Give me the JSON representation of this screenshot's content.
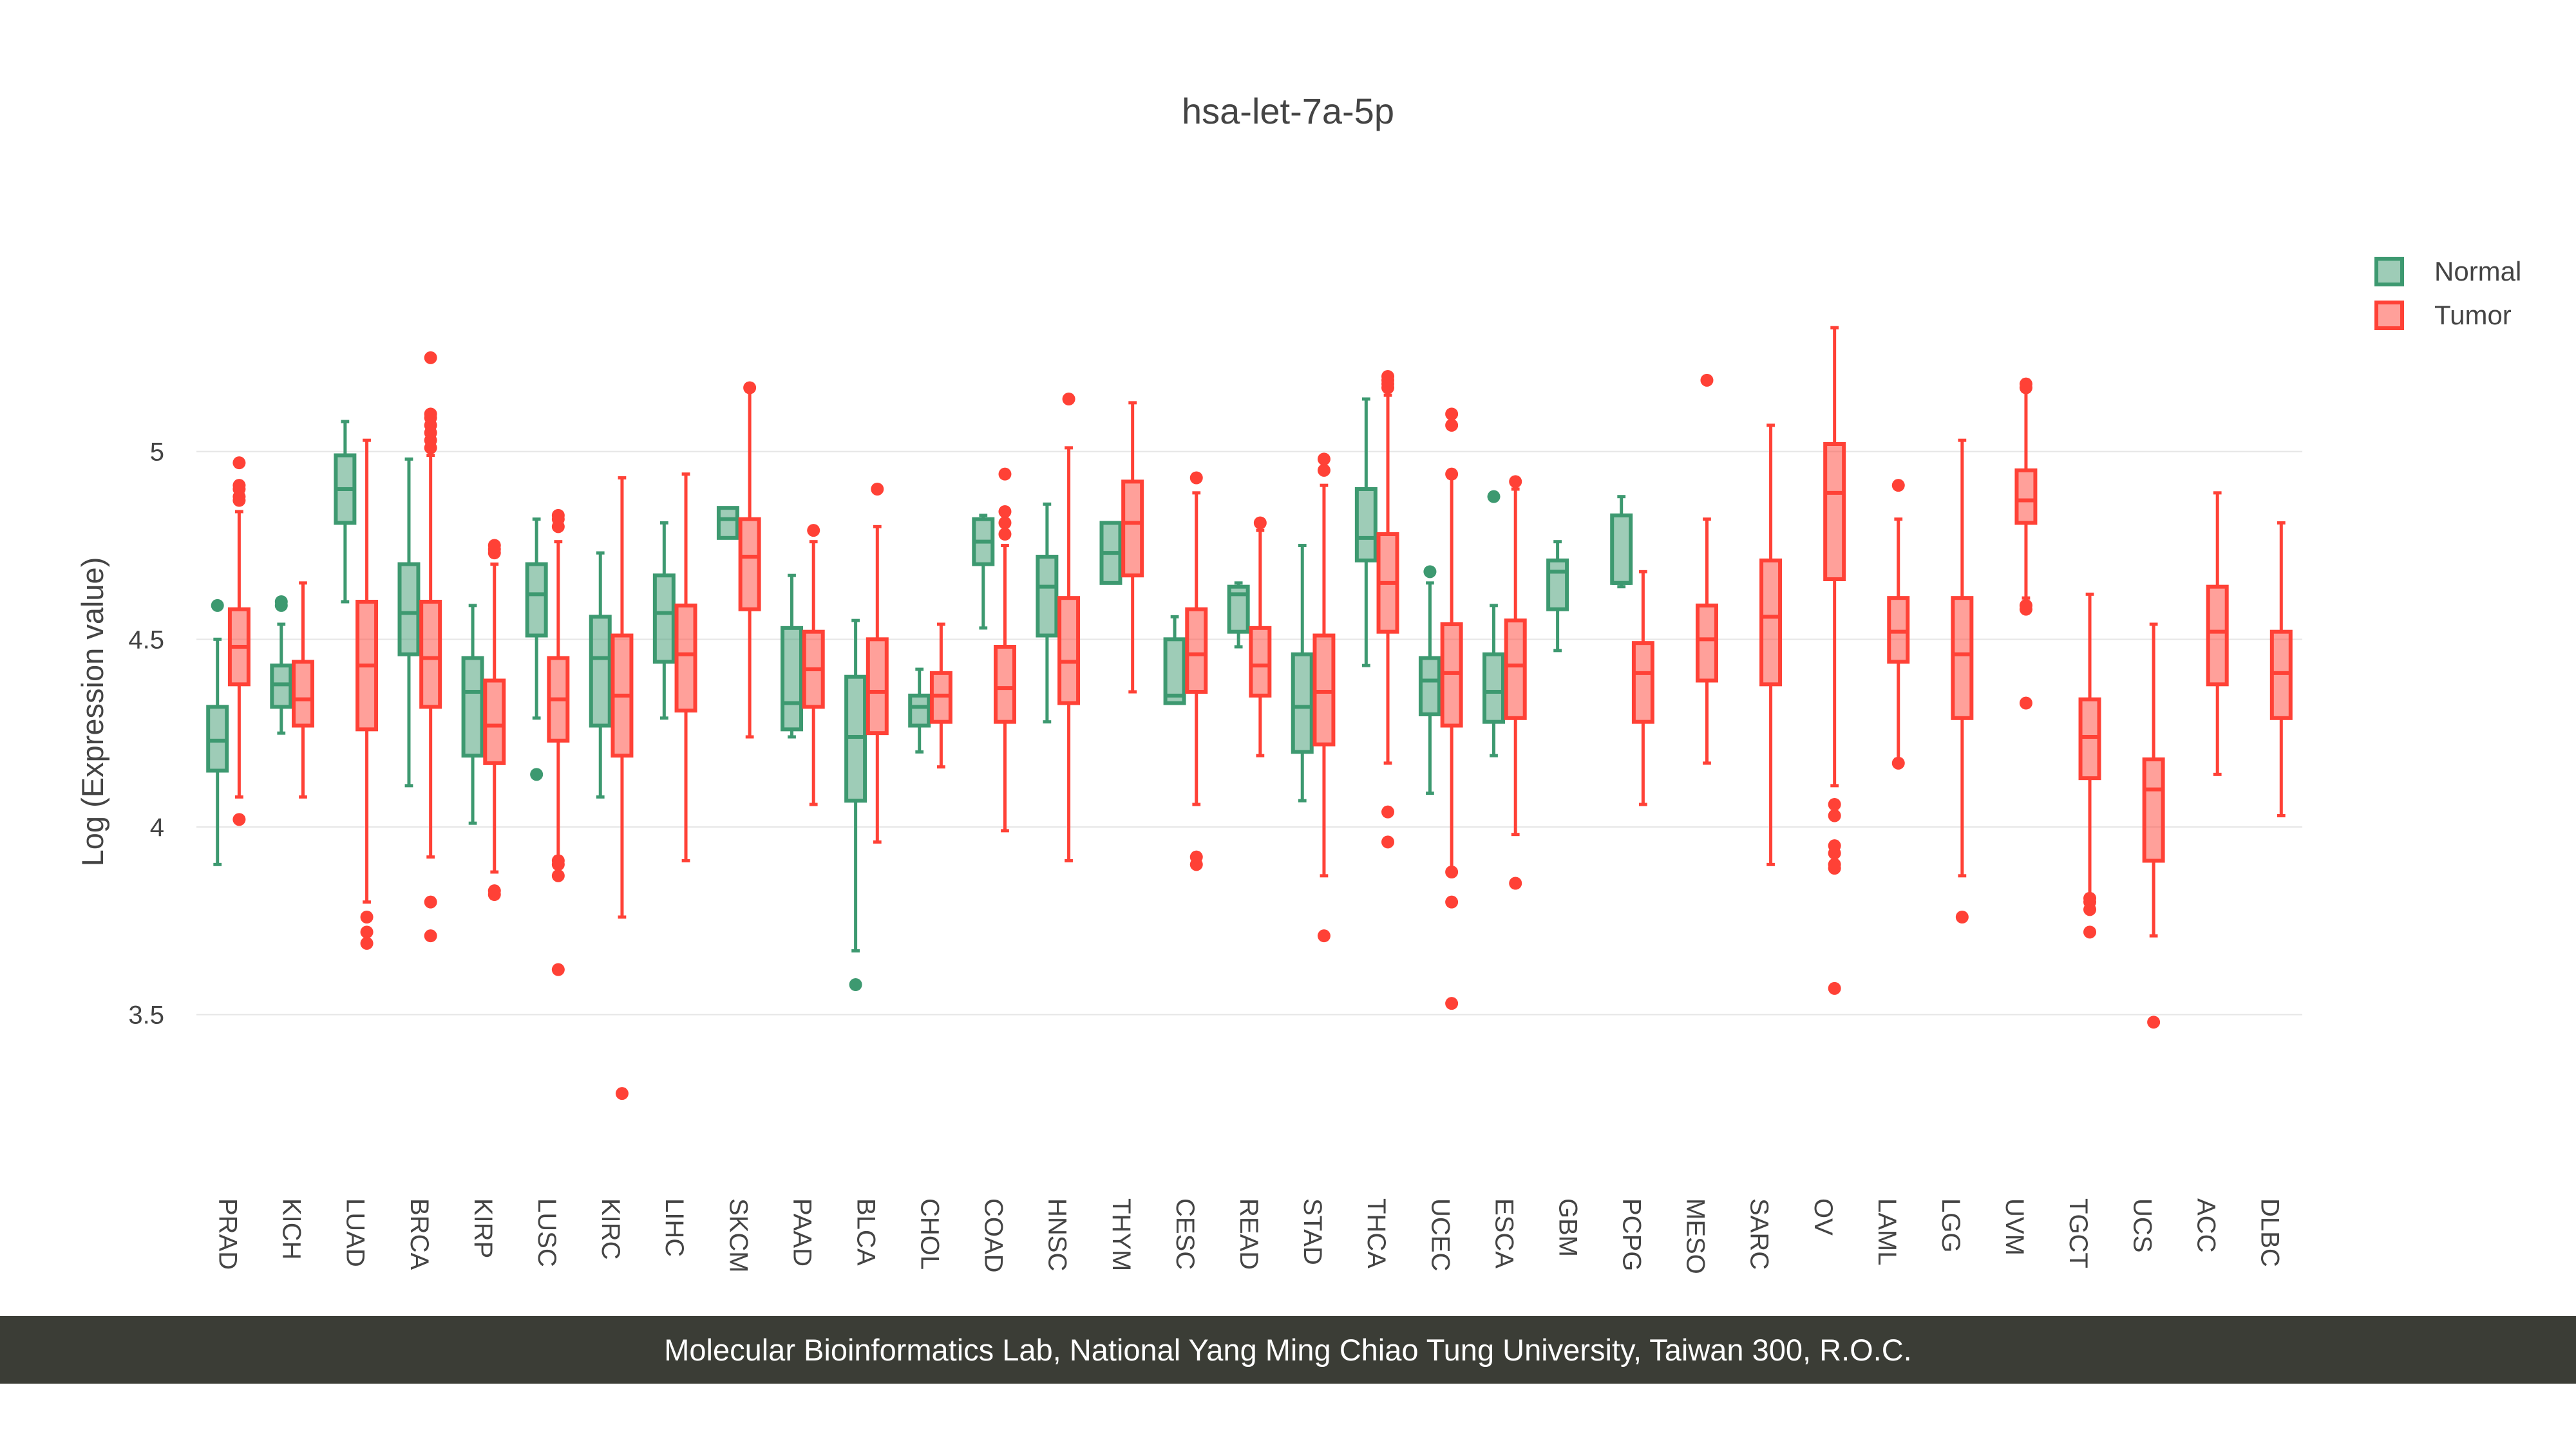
{
  "chart_data": {
    "type": "box",
    "title": "hsa-let-7a-5p",
    "xlabel": "",
    "ylabel": "Log (Expression value)",
    "ylim": [
      3.1,
      5.62
    ],
    "yticks": [
      3.5,
      4,
      4.5,
      5
    ],
    "yticklabels": [
      "3.5",
      "4",
      "4.5",
      "5"
    ],
    "grid": true,
    "legend_position": "top-right",
    "colors": {
      "Normal": "#3d9970",
      "Tumor": "#ff4136"
    },
    "series": [
      {
        "name": "Normal"
      },
      {
        "name": "Tumor"
      }
    ],
    "categories": [
      {
        "name": "PRAD",
        "normal": {
          "min": 3.9,
          "q1": 4.15,
          "median": 4.23,
          "q3": 4.32,
          "max": 4.5,
          "outliers": [
            4.59
          ]
        },
        "tumor": {
          "min": 4.08,
          "q1": 4.38,
          "median": 4.48,
          "q3": 4.58,
          "max": 4.84,
          "outliers": [
            4.02,
            4.87,
            4.88,
            4.9,
            4.91,
            4.97
          ]
        }
      },
      {
        "name": "KICH",
        "normal": {
          "min": 4.25,
          "q1": 4.32,
          "median": 4.38,
          "q3": 4.43,
          "max": 4.54,
          "outliers": [
            4.59,
            4.6
          ]
        },
        "tumor": {
          "min": 4.08,
          "q1": 4.27,
          "median": 4.34,
          "q3": 4.44,
          "max": 4.65,
          "outliers": []
        }
      },
      {
        "name": "LUAD",
        "normal": {
          "min": 4.6,
          "q1": 4.81,
          "median": 4.9,
          "q3": 4.99,
          "max": 5.08,
          "outliers": []
        },
        "tumor": {
          "min": 3.8,
          "q1": 4.26,
          "median": 4.43,
          "q3": 4.6,
          "max": 5.03,
          "outliers": [
            3.69,
            3.72,
            3.76
          ]
        }
      },
      {
        "name": "BRCA",
        "normal": {
          "min": 4.11,
          "q1": 4.46,
          "median": 4.57,
          "q3": 4.7,
          "max": 4.98,
          "outliers": []
        },
        "tumor": {
          "min": 3.92,
          "q1": 4.32,
          "median": 4.45,
          "q3": 4.6,
          "max": 4.99,
          "outliers": [
            3.71,
            3.8,
            5.01,
            5.03,
            5.05,
            5.07,
            5.09,
            5.1,
            5.25
          ]
        }
      },
      {
        "name": "KIRP",
        "normal": {
          "min": 4.01,
          "q1": 4.19,
          "median": 4.36,
          "q3": 4.45,
          "max": 4.59,
          "outliers": []
        },
        "tumor": {
          "min": 3.88,
          "q1": 4.17,
          "median": 4.27,
          "q3": 4.39,
          "max": 4.7,
          "outliers": [
            3.82,
            3.83,
            4.73,
            4.74,
            4.75
          ]
        }
      },
      {
        "name": "LUSC",
        "normal": {
          "min": 4.29,
          "q1": 4.51,
          "median": 4.62,
          "q3": 4.7,
          "max": 4.82,
          "outliers": [
            4.14
          ]
        },
        "tumor": {
          "min": 3.92,
          "q1": 4.23,
          "median": 4.34,
          "q3": 4.45,
          "max": 4.76,
          "outliers": [
            3.62,
            3.87,
            3.9,
            3.91,
            4.8,
            4.82,
            4.83
          ]
        }
      },
      {
        "name": "KIRC",
        "normal": {
          "min": 4.08,
          "q1": 4.27,
          "median": 4.45,
          "q3": 4.56,
          "max": 4.73,
          "outliers": []
        },
        "tumor": {
          "min": 3.76,
          "q1": 4.19,
          "median": 4.35,
          "q3": 4.51,
          "max": 4.93,
          "outliers": [
            3.29
          ]
        }
      },
      {
        "name": "LIHC",
        "normal": {
          "min": 4.29,
          "q1": 4.44,
          "median": 4.57,
          "q3": 4.67,
          "max": 4.81,
          "outliers": []
        },
        "tumor": {
          "min": 3.91,
          "q1": 4.31,
          "median": 4.46,
          "q3": 4.59,
          "max": 4.94,
          "outliers": []
        }
      },
      {
        "name": "SKCM",
        "normal": {
          "min": 4.77,
          "q1": 4.77,
          "median": 4.82,
          "q3": 4.85,
          "max": 4.85,
          "outliers": []
        },
        "tumor": {
          "min": 4.24,
          "q1": 4.58,
          "median": 4.72,
          "q3": 4.82,
          "max": 5.16,
          "outliers": [
            5.17
          ]
        }
      },
      {
        "name": "PAAD",
        "normal": {
          "min": 4.24,
          "q1": 4.26,
          "median": 4.33,
          "q3": 4.53,
          "max": 4.67,
          "outliers": []
        },
        "tumor": {
          "min": 4.06,
          "q1": 4.32,
          "median": 4.42,
          "q3": 4.52,
          "max": 4.76,
          "outliers": [
            4.79
          ]
        }
      },
      {
        "name": "BLCA",
        "normal": {
          "min": 3.67,
          "q1": 4.07,
          "median": 4.24,
          "q3": 4.4,
          "max": 4.55,
          "outliers": [
            3.58
          ]
        },
        "tumor": {
          "min": 3.96,
          "q1": 4.25,
          "median": 4.36,
          "q3": 4.5,
          "max": 4.8,
          "outliers": [
            4.9
          ]
        }
      },
      {
        "name": "CHOL",
        "normal": {
          "min": 4.2,
          "q1": 4.27,
          "median": 4.32,
          "q3": 4.35,
          "max": 4.42,
          "outliers": []
        },
        "tumor": {
          "min": 4.16,
          "q1": 4.28,
          "median": 4.35,
          "q3": 4.41,
          "max": 4.54,
          "outliers": []
        }
      },
      {
        "name": "COAD",
        "normal": {
          "min": 4.53,
          "q1": 4.7,
          "median": 4.76,
          "q3": 4.82,
          "max": 4.83,
          "outliers": []
        },
        "tumor": {
          "min": 3.99,
          "q1": 4.28,
          "median": 4.37,
          "q3": 4.48,
          "max": 4.75,
          "outliers": [
            4.78,
            4.81,
            4.84,
            4.94
          ]
        }
      },
      {
        "name": "HNSC",
        "normal": {
          "min": 4.28,
          "q1": 4.51,
          "median": 4.64,
          "q3": 4.72,
          "max": 4.86,
          "outliers": []
        },
        "tumor": {
          "min": 3.91,
          "q1": 4.33,
          "median": 4.44,
          "q3": 4.61,
          "max": 5.01,
          "outliers": [
            5.14
          ]
        }
      },
      {
        "name": "THYM",
        "normal": {
          "min": 4.65,
          "q1": 4.65,
          "median": 4.73,
          "q3": 4.81,
          "max": 4.81,
          "outliers": []
        },
        "tumor": {
          "min": 4.36,
          "q1": 4.67,
          "median": 4.81,
          "q3": 4.92,
          "max": 5.13,
          "outliers": []
        }
      },
      {
        "name": "CESC",
        "normal": {
          "min": 4.33,
          "q1": 4.33,
          "median": 4.35,
          "q3": 4.5,
          "max": 4.56,
          "outliers": []
        },
        "tumor": {
          "min": 4.06,
          "q1": 4.36,
          "median": 4.46,
          "q3": 4.58,
          "max": 4.89,
          "outliers": [
            3.9,
            3.92,
            4.93
          ]
        }
      },
      {
        "name": "READ",
        "normal": {
          "min": 4.48,
          "q1": 4.52,
          "median": 4.62,
          "q3": 4.64,
          "max": 4.65,
          "outliers": []
        },
        "tumor": {
          "min": 4.19,
          "q1": 4.35,
          "median": 4.43,
          "q3": 4.53,
          "max": 4.79,
          "outliers": [
            4.81
          ]
        }
      },
      {
        "name": "STAD",
        "normal": {
          "min": 4.07,
          "q1": 4.2,
          "median": 4.32,
          "q3": 4.46,
          "max": 4.75,
          "outliers": []
        },
        "tumor": {
          "min": 3.87,
          "q1": 4.22,
          "median": 4.36,
          "q3": 4.51,
          "max": 4.91,
          "outliers": [
            3.71,
            4.95,
            4.98
          ]
        }
      },
      {
        "name": "THCA",
        "normal": {
          "min": 4.43,
          "q1": 4.71,
          "median": 4.77,
          "q3": 4.9,
          "max": 5.14,
          "outliers": []
        },
        "tumor": {
          "min": 4.17,
          "q1": 4.52,
          "median": 4.65,
          "q3": 4.78,
          "max": 5.15,
          "outliers": [
            3.96,
            4.04,
            5.17,
            5.18,
            5.19,
            5.2
          ]
        }
      },
      {
        "name": "UCEC",
        "normal": {
          "min": 4.09,
          "q1": 4.3,
          "median": 4.39,
          "q3": 4.45,
          "max": 4.65,
          "outliers": [
            4.68
          ]
        },
        "tumor": {
          "min": 3.88,
          "q1": 4.27,
          "median": 4.41,
          "q3": 4.54,
          "max": 4.93,
          "outliers": [
            3.53,
            3.8,
            3.88,
            4.94,
            5.07,
            5.1
          ]
        }
      },
      {
        "name": "ESCA",
        "normal": {
          "min": 4.19,
          "q1": 4.28,
          "median": 4.36,
          "q3": 4.46,
          "max": 4.59,
          "outliers": [
            4.88
          ]
        },
        "tumor": {
          "min": 3.98,
          "q1": 4.29,
          "median": 4.43,
          "q3": 4.55,
          "max": 4.9,
          "outliers": [
            3.85,
            4.92
          ]
        }
      },
      {
        "name": "GBM",
        "normal": {
          "min": 4.47,
          "q1": 4.58,
          "median": 4.68,
          "q3": 4.71,
          "max": 4.76,
          "outliers": []
        },
        "tumor": null
      },
      {
        "name": "PCPG",
        "normal": {
          "min": 4.64,
          "q1": 4.65,
          "median": 4.65,
          "q3": 4.83,
          "max": 4.88,
          "outliers": []
        },
        "tumor": {
          "min": 4.06,
          "q1": 4.28,
          "median": 4.41,
          "q3": 4.49,
          "max": 4.68,
          "outliers": []
        }
      },
      {
        "name": "MESO",
        "normal": null,
        "tumor": {
          "min": 4.17,
          "q1": 4.39,
          "median": 4.5,
          "q3": 4.59,
          "max": 4.82,
          "outliers": [
            5.19
          ]
        }
      },
      {
        "name": "SARC",
        "normal": null,
        "tumor": {
          "min": 3.9,
          "q1": 4.38,
          "median": 4.56,
          "q3": 4.71,
          "max": 5.07,
          "outliers": []
        }
      },
      {
        "name": "OV",
        "normal": null,
        "tumor": {
          "min": 4.11,
          "q1": 4.66,
          "median": 4.89,
          "q3": 5.02,
          "max": 5.33,
          "outliers": [
            3.57,
            3.89,
            3.9,
            3.93,
            3.95,
            4.03,
            4.06
          ]
        }
      },
      {
        "name": "LAML",
        "normal": null,
        "tumor": {
          "min": 4.18,
          "q1": 4.44,
          "median": 4.52,
          "q3": 4.61,
          "max": 4.82,
          "outliers": [
            4.17,
            4.91
          ]
        }
      },
      {
        "name": "LGG",
        "normal": null,
        "tumor": {
          "min": 3.87,
          "q1": 4.29,
          "median": 4.46,
          "q3": 4.61,
          "max": 5.03,
          "outliers": [
            3.76
          ]
        }
      },
      {
        "name": "UVM",
        "normal": null,
        "tumor": {
          "min": 4.61,
          "q1": 4.81,
          "median": 4.87,
          "q3": 4.95,
          "max": 5.16,
          "outliers": [
            4.33,
            4.58,
            4.59,
            5.17,
            5.18
          ]
        }
      },
      {
        "name": "TGCT",
        "normal": null,
        "tumor": {
          "min": 3.82,
          "q1": 4.13,
          "median": 4.24,
          "q3": 4.34,
          "max": 4.62,
          "outliers": [
            3.72,
            3.78,
            3.8,
            3.81
          ]
        }
      },
      {
        "name": "UCS",
        "normal": null,
        "tumor": {
          "min": 3.71,
          "q1": 3.91,
          "median": 4.1,
          "q3": 4.18,
          "max": 4.54,
          "outliers": [
            3.48
          ]
        }
      },
      {
        "name": "ACC",
        "normal": null,
        "tumor": {
          "min": 4.14,
          "q1": 4.38,
          "median": 4.52,
          "q3": 4.64,
          "max": 4.89,
          "outliers": []
        }
      },
      {
        "name": "DLBC",
        "normal": null,
        "tumor": {
          "min": 4.03,
          "q1": 4.29,
          "median": 4.41,
          "q3": 4.52,
          "max": 4.81,
          "outliers": []
        }
      }
    ]
  },
  "footer": {
    "text": "Molecular Bioinformatics Lab, National Yang Ming Chiao Tung University, Taiwan 300, R.O.C."
  }
}
